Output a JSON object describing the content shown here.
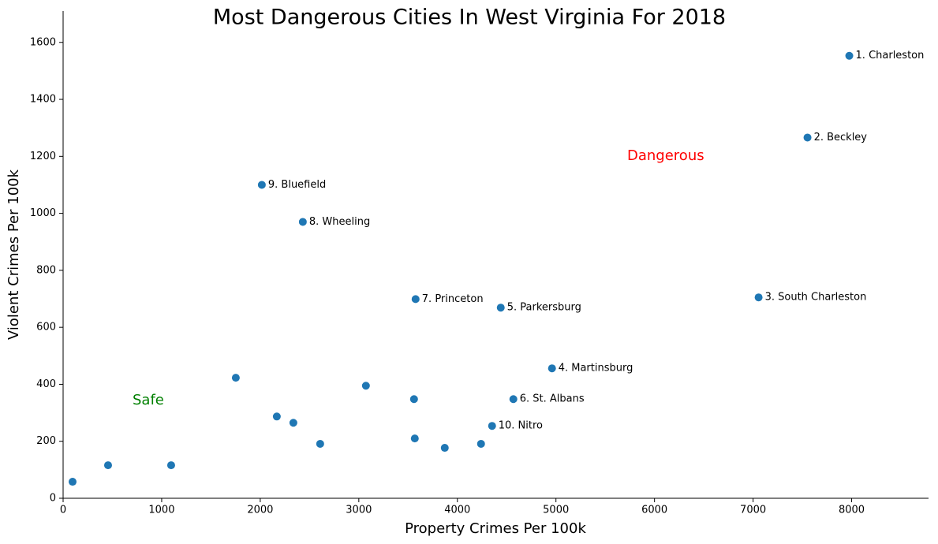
{
  "chart_data": {
    "type": "scatter",
    "title": "Most Dangerous Cities In West Virginia For 2018",
    "x_label": "Property Crimes Per 100k",
    "y_label": "Violent Crimes Per 100k",
    "color": "#1f77b4",
    "x": [
      7976,
      7552,
      7056,
      4960,
      4440,
      4568,
      3576,
      2432,
      2016,
      4352,
      96,
      456,
      1096,
      1752,
      2168,
      2336,
      2608,
      3072,
      3560,
      3568,
      3872,
      4240
    ],
    "values": [
      1553,
      1266,
      705,
      456,
      669,
      348,
      699,
      970,
      1100,
      254,
      58,
      116,
      116,
      423,
      287,
      265,
      191,
      395,
      348,
      210,
      177,
      191
    ],
    "labels": [
      "1. Charleston",
      "2. Beckley",
      "3. South Charleston",
      "4. Martinsburg",
      "5. Parkersburg",
      "6. St. Albans",
      "7. Princeton",
      "8. Wheeling",
      "9. Bluefield",
      "10. Nitro",
      null,
      null,
      null,
      null,
      null,
      null,
      null,
      null,
      null,
      null,
      null,
      null
    ],
    "annotations": [
      {
        "text": "Dangerous",
        "color": "#ff0000"
      },
      {
        "text": "Safe",
        "color": "#008000"
      }
    ],
    "xlim": [
      0,
      8780
    ],
    "ylim": [
      0,
      1710
    ],
    "xticks": [
      0,
      1000,
      2000,
      3000,
      4000,
      5000,
      6000,
      7000,
      8000
    ],
    "yticks": [
      0,
      200,
      400,
      600,
      800,
      1000,
      1200,
      1400,
      1600
    ],
    "grid": false
  }
}
